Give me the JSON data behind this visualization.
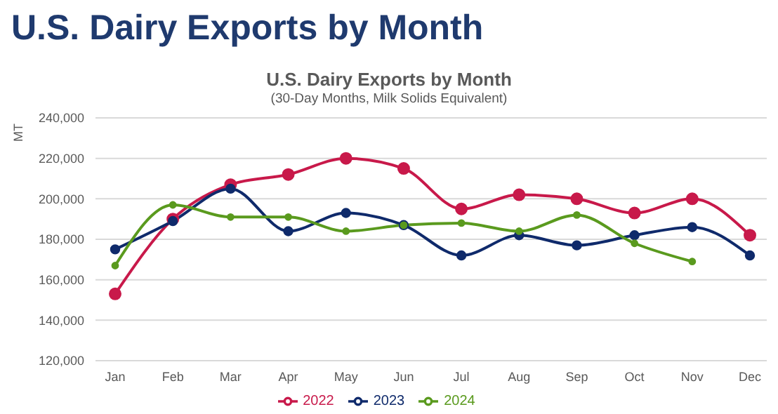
{
  "chart_data": {
    "type": "line",
    "title": "U.S. Dairy Exports by Month",
    "subtitle": "U.S. Dairy Exports by Month",
    "annotations": [
      "(30-Day Months, Milk Solids Equivalent)"
    ],
    "ylabel": "MT",
    "categories": [
      "Jan",
      "Feb",
      "Mar",
      "Apr",
      "May",
      "Jun",
      "Jul",
      "Aug",
      "Sep",
      "Oct",
      "Nov",
      "Dec"
    ],
    "series": [
      {
        "name": "2022",
        "color": "#c8194a",
        "values": [
          153000,
          190000,
          207000,
          212000,
          220000,
          215000,
          195000,
          202000,
          200000,
          193000,
          200000,
          182000
        ]
      },
      {
        "name": "2023",
        "color": "#0f2a6b",
        "values": [
          175000,
          189000,
          205000,
          184000,
          193000,
          187000,
          172000,
          182000,
          177000,
          182000,
          186000,
          172000
        ]
      },
      {
        "name": "2024",
        "color": "#5a9a1e",
        "values": [
          167000,
          197000,
          191000,
          191000,
          184000,
          187000,
          188000,
          184000,
          192000,
          178000,
          169000,
          null
        ]
      }
    ],
    "ylim": [
      120000,
      240000
    ],
    "yticks": [
      {
        "value": 120000,
        "label": "120,000"
      },
      {
        "value": 140000,
        "label": "140,000"
      },
      {
        "value": 160000,
        "label": "160,000"
      },
      {
        "value": 180000,
        "label": "180,000"
      },
      {
        "value": 200000,
        "label": "200,000"
      },
      {
        "value": 220000,
        "label": "220,000"
      },
      {
        "value": 240000,
        "label": "240,000"
      }
    ],
    "grid": "y",
    "legend": "bottom",
    "marker": "circle",
    "line_style": "solid"
  }
}
